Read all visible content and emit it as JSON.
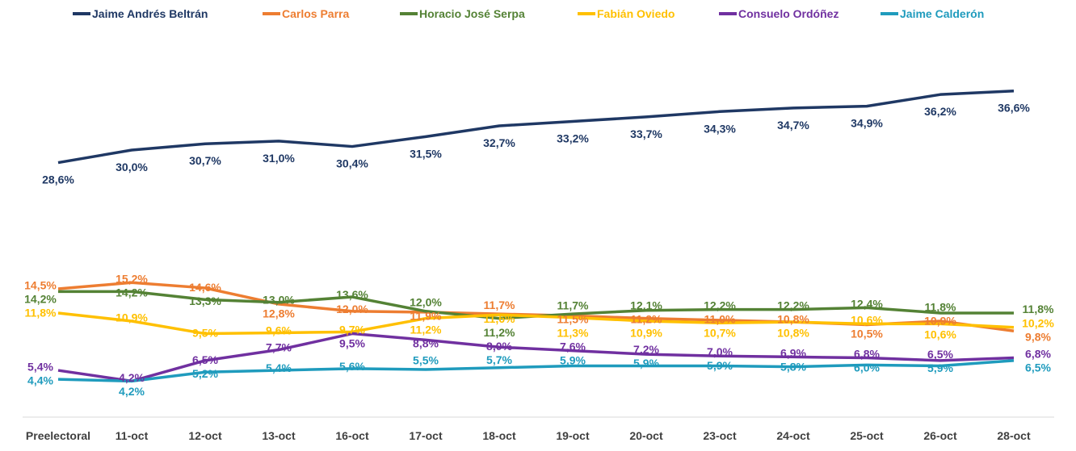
{
  "chart_data": {
    "type": "line",
    "title": "",
    "xlabel": "",
    "ylabel": "",
    "ylim": [
      0,
      40
    ],
    "grid": false,
    "legend_position": "top",
    "categories": [
      "Preelectoral",
      "11-oct",
      "12-oct",
      "13-oct",
      "16-oct",
      "17-oct",
      "18-oct",
      "19-oct",
      "20-oct",
      "23-oct",
      "24-oct",
      "25-oct",
      "26-oct",
      "28-oct"
    ],
    "series": [
      {
        "name": "Jaime Andrés Beltrán",
        "color": "#1f3864",
        "values": [
          28.6,
          30.0,
          30.7,
          31.0,
          30.4,
          31.5,
          32.7,
          33.2,
          33.7,
          34.3,
          34.7,
          34.9,
          36.2,
          36.6
        ],
        "labels": [
          "28,6%",
          "30,0%",
          "30,7%",
          "31,0%",
          "30,4%",
          "31,5%",
          "32,7%",
          "33,2%",
          "33,7%",
          "34,3%",
          "34,7%",
          "34,9%",
          "36,2%",
          "36,6%"
        ]
      },
      {
        "name": "Carlos Parra",
        "color": "#ed7d31",
        "values": [
          14.5,
          15.2,
          14.6,
          12.8,
          12.0,
          11.9,
          11.7,
          11.5,
          11.2,
          11.0,
          10.8,
          10.5,
          10.9,
          9.8
        ],
        "labels": [
          "14,5%",
          "15,2%",
          "14,6%",
          "12,8%",
          "12,0%",
          "11,9%",
          "11,7%",
          "11,5%",
          "11,2%",
          "11,0%",
          "10,8%",
          "10,5%",
          "10,9%",
          "9,8%"
        ]
      },
      {
        "name": "Horacio José Serpa",
        "color": "#548235",
        "values": [
          14.2,
          14.2,
          13.3,
          13.0,
          13.6,
          12.0,
          11.2,
          11.7,
          12.1,
          12.2,
          12.2,
          12.4,
          11.8,
          11.8
        ],
        "labels": [
          "14,2%",
          "14,2%",
          "13,3%",
          "13,0%",
          "13,6%",
          "12,0%",
          "11,2%",
          "11,7%",
          "12,1%",
          "12,2%",
          "12,2%",
          "12,4%",
          "11,8%",
          "11,8%"
        ]
      },
      {
        "name": "Fabián Oviedo",
        "color": "#ffc000",
        "values": [
          11.8,
          10.9,
          9.5,
          9.6,
          9.7,
          11.2,
          11.6,
          11.3,
          10.9,
          10.7,
          10.8,
          10.6,
          10.6,
          10.2
        ],
        "labels": [
          "11,8%",
          "10,9%",
          "9,5%",
          "9,6%",
          "9,7%",
          "11,2%",
          "11,6%",
          "11,3%",
          "10,9%",
          "10,7%",
          "10,8%",
          "10,6%",
          "10,6%",
          "10,2%"
        ]
      },
      {
        "name": "Consuelo Ordóñez",
        "color": "#7030a0",
        "values": [
          5.4,
          4.2,
          6.5,
          7.7,
          9.5,
          8.8,
          8.0,
          7.6,
          7.2,
          7.0,
          6.9,
          6.8,
          6.5,
          6.8
        ],
        "labels": [
          "5,4%",
          "4,2%",
          "6,5%",
          "7,7%",
          "9,5%",
          "8,8%",
          "8,0%",
          "7,6%",
          "7,2%",
          "7,0%",
          "6,9%",
          "6,8%",
          "6,5%",
          "6,8%"
        ]
      },
      {
        "name": "Jaime Calderón",
        "color": "#1f9bbd",
        "values": [
          4.4,
          4.2,
          5.2,
          5.4,
          5.6,
          5.5,
          5.7,
          5.9,
          5.9,
          5.9,
          5.8,
          6.0,
          5.9,
          6.5
        ],
        "labels": [
          "4,4%",
          "4,2%",
          "5,2%",
          "5,4%",
          "5,6%",
          "5,5%",
          "5,7%",
          "5,9%",
          "5,9%",
          "5,9%",
          "5,8%",
          "6,0%",
          "5,9%",
          "6,5%"
        ]
      }
    ]
  }
}
